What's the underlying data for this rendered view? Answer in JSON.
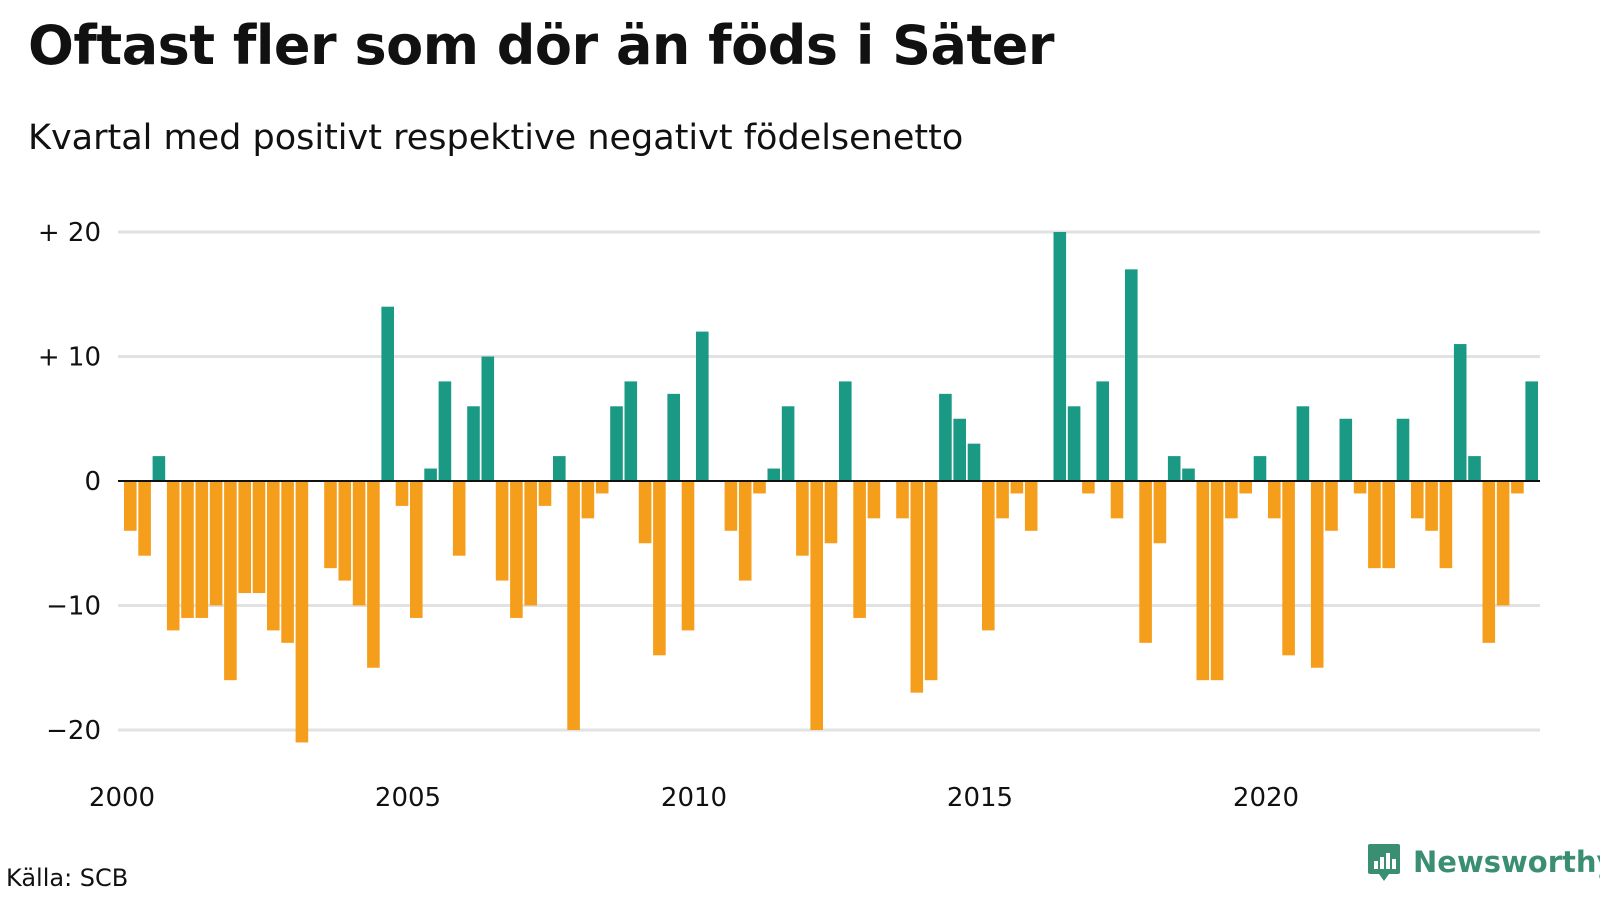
{
  "title": "Oftast fler som dör än föds i Säter",
  "subtitle": "Kvartal med positivt respektive negativt födelsenetto",
  "source": "Källa: SCB",
  "brand": "Newsworthy",
  "colors": {
    "positive": "#1a9a84",
    "negative": "#f59e1c",
    "grid": "#e2e2e2",
    "zero": "#111111"
  },
  "chart_data": {
    "type": "bar",
    "title": "Oftast fler som dör än föds i Säter",
    "subtitle": "Kvartal med positivt respektive negativt födelsenetto",
    "x_start": "2000-Q1",
    "x_ticks": [
      "2000",
      "2005",
      "2010",
      "2015",
      "2020"
    ],
    "y_ticks": [
      {
        "value": 20,
        "label": "+ 20"
      },
      {
        "value": 10,
        "label": "+ 10"
      },
      {
        "value": 0,
        "label": "0"
      },
      {
        "value": -10,
        "label": "−10"
      },
      {
        "value": -20,
        "label": "−20"
      }
    ],
    "ylim": [
      -21,
      20
    ],
    "grid": true,
    "values": [
      -4,
      -6,
      2,
      -12,
      -11,
      -11,
      -10,
      -16,
      -9,
      -9,
      -12,
      -13,
      -21,
      0,
      -7,
      -8,
      -10,
      -15,
      14,
      -2,
      -11,
      1,
      8,
      -6,
      6,
      10,
      -8,
      -11,
      -10,
      -2,
      2,
      -20,
      -3,
      -1,
      6,
      8,
      -5,
      -14,
      7,
      -12,
      12,
      0,
      -4,
      -8,
      -1,
      1,
      6,
      -6,
      -20,
      -5,
      8,
      -11,
      -3,
      0,
      -3,
      -17,
      -16,
      7,
      5,
      3,
      -12,
      -3,
      -1,
      -4,
      0,
      20,
      6,
      -1,
      8,
      -3,
      17,
      -13,
      -5,
      2,
      1,
      -16,
      -16,
      -3,
      -1,
      2,
      -3,
      -14,
      6,
      -15,
      -4,
      5,
      -1,
      -7,
      -7,
      5,
      -3,
      -4,
      -7,
      11,
      2,
      -13,
      -10,
      -1,
      8
    ]
  }
}
